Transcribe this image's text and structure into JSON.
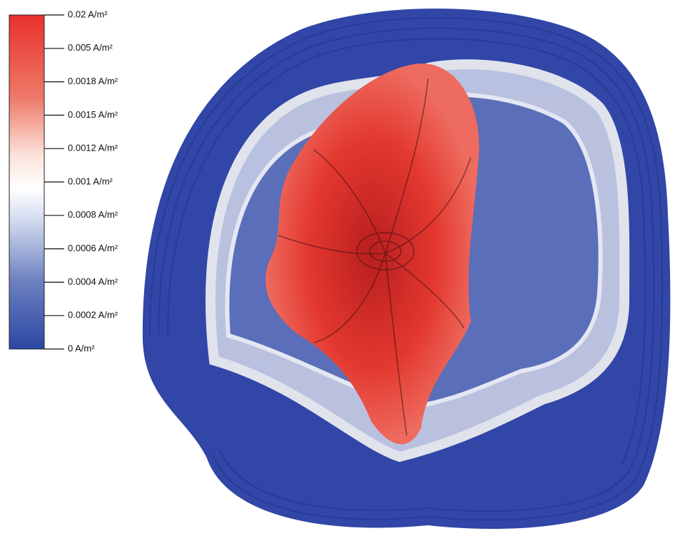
{
  "colorbar": {
    "ticks": [
      "0.02 A/m²",
      "0.005 A/m²",
      "0.0018 A/m²",
      "0.0015 A/m²",
      "0.0012 A/m²",
      "0.001 A/m²",
      "0.0008 A/m²",
      "0.0006 A/m²",
      "0.0004 A/m²",
      "0.0002 A/m²",
      "0 A/m²"
    ]
  }
}
